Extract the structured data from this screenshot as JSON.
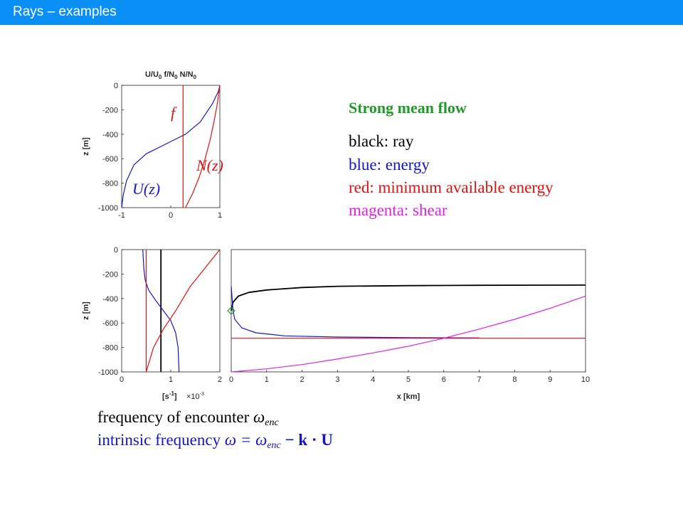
{
  "page_title": "Rays – examples",
  "legend": {
    "heading": "Strong mean flow",
    "items": [
      {
        "text": "black: ray",
        "color": "#000000"
      },
      {
        "text": "blue: energy",
        "color": "#1414c8"
      },
      {
        "text": "red: minimum available energy",
        "color": "#e01010"
      },
      {
        "text": "magenta: shear",
        "color": "#e020e0"
      }
    ],
    "heading_color": "#1f9a2a"
  },
  "captions": {
    "line1_text": "frequency of encounter ",
    "line1_symbol": "ω",
    "line1_sub": "enc",
    "line2_text": "intrinsic frequency ",
    "line2_eq": "ω = ω",
    "line2_sub": "enc",
    "line2_tail": " − k · U"
  },
  "colors": {
    "accent": "#0a8ff7",
    "black": "#000000",
    "blue": "#1414c8",
    "red": "#e01010",
    "magenta": "#e020e0"
  },
  "chart_data": [
    {
      "type": "line",
      "id": "profiles",
      "title": "U/U0  f/N0  N/N0",
      "title_parts": {
        "u": "U/U",
        "u_sub": "0",
        "f": "f/N",
        "f_sub": "0",
        "n": "N/N",
        "n_sub": "0"
      },
      "xlabel": "",
      "ylabel": "z [m]",
      "xlim": [
        -1,
        1
      ],
      "ylim": [
        -1000,
        0
      ],
      "x_ticks": [
        "-1",
        "0",
        "1"
      ],
      "y_ticks": [
        "0",
        "-200",
        "-400",
        "-600",
        "-800",
        "-1000"
      ],
      "annotations": {
        "f": "f",
        "N": "N(z)",
        "U": "U(z)"
      },
      "series": [
        {
          "name": "U(z)",
          "color": "blue",
          "x": [
            1.0,
            0.97,
            0.85,
            0.6,
            0.3,
            0.05,
            -0.2,
            -0.5,
            -0.75,
            -0.9,
            -0.97,
            -1.0
          ],
          "y": [
            0,
            -50,
            -150,
            -300,
            -400,
            -450,
            -500,
            -560,
            -650,
            -780,
            -900,
            -1000
          ]
        },
        {
          "name": "f",
          "color": "red",
          "x": [
            0.25,
            0.25
          ],
          "y": [
            0,
            -1000
          ]
        },
        {
          "name": "N(z)",
          "color": "red",
          "x": [
            1.0,
            0.95,
            0.88,
            0.8,
            0.7,
            0.58,
            0.45,
            0.3
          ],
          "y": [
            0,
            -150,
            -300,
            -450,
            -600,
            -750,
            -880,
            -1000
          ]
        }
      ]
    },
    {
      "type": "line",
      "id": "frequencies",
      "xlabel": "[s-1]",
      "xlabel_parts": {
        "main": "[s",
        "sup": "-1",
        "end": "]"
      },
      "x_exponent": "×10-3",
      "x_exponent_parts": {
        "main": "×10",
        "sup": "-3"
      },
      "ylabel": "z [m]",
      "xlim": [
        0,
        2
      ],
      "ylim": [
        -1000,
        0
      ],
      "x_ticks": [
        "0",
        "1",
        "2"
      ],
      "y_ticks": [
        "0",
        "-200",
        "-400",
        "-600",
        "-800",
        "-1000"
      ],
      "series": [
        {
          "name": "black",
          "color": "black",
          "x": [
            0.8,
            0.8
          ],
          "y": [
            0,
            -1000
          ]
        },
        {
          "name": "blue",
          "color": "blue",
          "x": [
            0.43,
            0.45,
            0.48,
            0.55,
            0.7,
            0.85,
            1.0,
            1.1,
            1.15,
            1.17
          ],
          "y": [
            0,
            -150,
            -250,
            -330,
            -420,
            -500,
            -580,
            -680,
            -800,
            -1000
          ]
        },
        {
          "name": "red-vertical",
          "color": "red",
          "x": [
            0.5,
            0.5
          ],
          "y": [
            0,
            -1000
          ]
        },
        {
          "name": "red-curve",
          "color": "red",
          "x": [
            2.0,
            1.7,
            1.4,
            1.1,
            0.85,
            0.65,
            0.5
          ],
          "y": [
            0,
            -150,
            -300,
            -500,
            -650,
            -800,
            -1000
          ]
        }
      ]
    },
    {
      "type": "line",
      "id": "ray-path",
      "xlabel": "x [km]",
      "ylabel": "",
      "xlim": [
        0,
        10
      ],
      "ylim": [
        -1000,
        0
      ],
      "x_ticks": [
        "0",
        "1",
        "2",
        "3",
        "4",
        "5",
        "6",
        "7",
        "8",
        "9",
        "10"
      ],
      "series": [
        {
          "name": "black: ray",
          "color": "black",
          "x": [
            0,
            0.05,
            0.2,
            0.5,
            1.0,
            2.0,
            3.0,
            5.0,
            7.0,
            10.0
          ],
          "y": [
            -500,
            -430,
            -380,
            -350,
            -330,
            -310,
            -300,
            -295,
            -292,
            -290
          ]
        },
        {
          "name": "blue: energy",
          "color": "blue",
          "x": [
            0,
            0.05,
            0.1,
            0.3,
            0.7,
            1.5,
            3.0,
            5.0,
            7.0
          ],
          "y": [
            -300,
            -500,
            -570,
            -640,
            -680,
            -705,
            -715,
            -720,
            -722
          ]
        },
        {
          "name": "red: minimum available energy",
          "color": "red",
          "x": [
            0,
            10
          ],
          "y": [
            -725,
            -725
          ]
        },
        {
          "name": "magenta: shear",
          "color": "magenta",
          "x": [
            0,
            1,
            2,
            3,
            4,
            5,
            6,
            7,
            8,
            9,
            10
          ],
          "y": [
            -1000,
            -975,
            -940,
            -895,
            -845,
            -790,
            -725,
            -650,
            -570,
            -480,
            -380
          ]
        }
      ],
      "marker": {
        "x": 0,
        "y": -500,
        "color": "#1f9a2a"
      }
    }
  ]
}
